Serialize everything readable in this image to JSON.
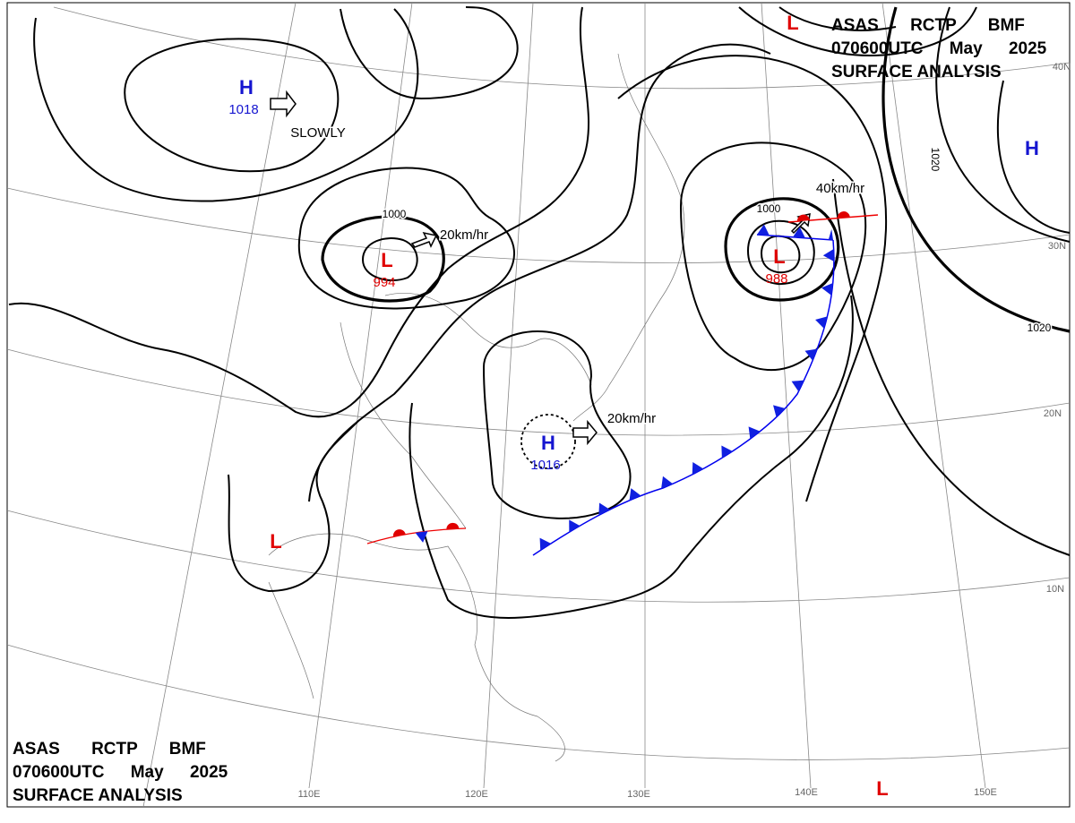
{
  "header": {
    "lines": [
      "ASAS RCTP BMF",
      "070600UTC May 2025",
      "SURFACE ANALYSIS"
    ]
  },
  "systems": [
    {
      "symbol": "H",
      "pressure": "1018"
    },
    {
      "symbol": "L",
      "pressure": "994"
    },
    {
      "symbol": "H",
      "pressure": "1016"
    },
    {
      "symbol": "L",
      "pressure": "988"
    },
    {
      "symbol": "H"
    },
    {
      "symbol": "L"
    },
    {
      "symbol": "L"
    },
    {
      "symbol": "L"
    }
  ],
  "isobar_labels": [
    "1000",
    "1000",
    "1020",
    "1020"
  ],
  "motion_labels": [
    "SLOWLY",
    "20km/hr",
    "20km/hr",
    "40km/hr"
  ],
  "latitude_labels": [
    "40N",
    "30N",
    "20N",
    "10N"
  ],
  "longitude_labels": [
    "110E",
    "120E",
    "130E",
    "140E",
    "150E"
  ]
}
